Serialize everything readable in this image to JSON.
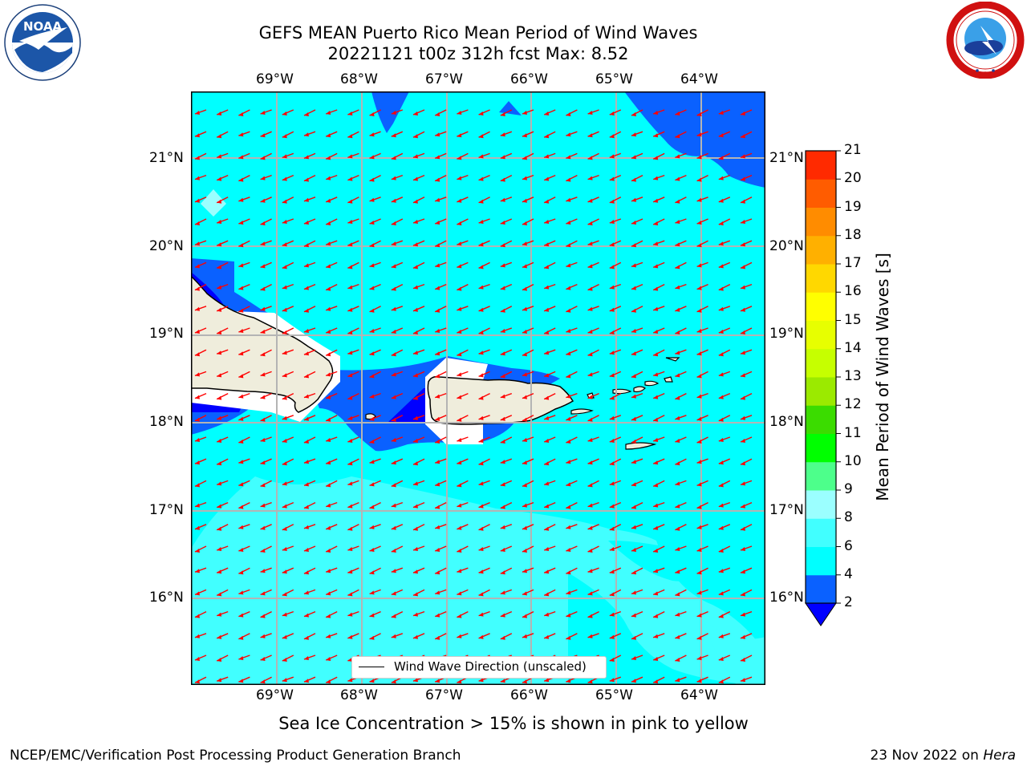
{
  "title_line1": "GEFS MEAN Puerto Rico Mean Period of Wind Waves",
  "title_line2": "20221121 t00z 312h fcst   Max: 8.52",
  "logos": {
    "left_icon": "noaa-logo",
    "right_icon": "nws-logo"
  },
  "map": {
    "lon_labels": [
      "69°W",
      "68°W",
      "67°W",
      "66°W",
      "65°W",
      "64°W"
    ],
    "lat_labels": [
      "21°N",
      "20°N",
      "19°N",
      "18°N",
      "17°N",
      "16°N"
    ],
    "legend": "Wind Wave Direction (unscaled)",
    "arrow_color": "#ff0000",
    "land_color": "#efeddc"
  },
  "colorbar": {
    "label": "Mean Period of Wind Waves [s]",
    "ticks": [
      "2",
      "4",
      "6",
      "8",
      "9",
      "10",
      "11",
      "12",
      "13",
      "14",
      "15",
      "16",
      "17",
      "18",
      "19",
      "20",
      "21"
    ],
    "colors": [
      "#0a61ff",
      "#00ffff",
      "#41ffff",
      "#9bffff",
      "#4dff8b",
      "#00ff00",
      "#3bdc00",
      "#9bea00",
      "#c6ff00",
      "#e7ff00",
      "#ffff00",
      "#ffd800",
      "#ffb000",
      "#ff8c00",
      "#ff5c00",
      "#ff2a00",
      "#ff0000"
    ],
    "under_color": "#0000ff"
  },
  "sea_ice_note": "Sea Ice Concentration > 15% is shown in pink to yellow",
  "footer": {
    "left": "NCEP/EMC/Verification Post Processing Product Generation Branch",
    "date": "23 Nov 2022 on ",
    "machine": "Hera"
  }
}
